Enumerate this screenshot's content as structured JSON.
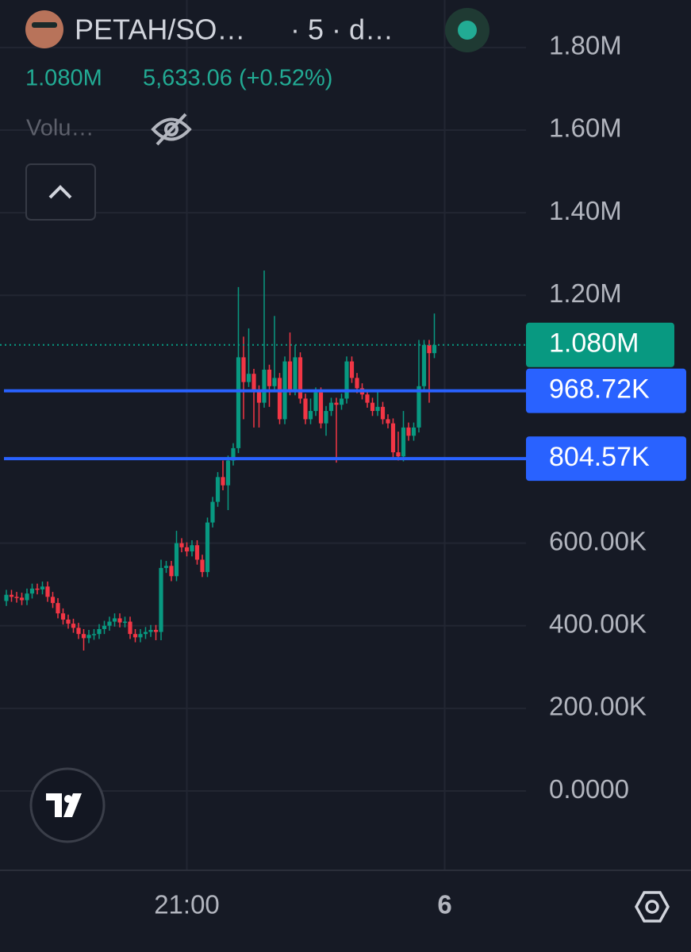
{
  "header": {
    "symbol": "PETAH/SO…",
    "interval": "· 5 · d…",
    "price": "1.080M",
    "change": "5,633.06 (+0.52%)",
    "indicator": "Volu…"
  },
  "chart_data": {
    "type": "candlestick",
    "categories": [
      null,
      null,
      null,
      null,
      null,
      null,
      null,
      null,
      null,
      null,
      null,
      null,
      null,
      null,
      null,
      null,
      null,
      null,
      null,
      null,
      null,
      null,
      null,
      null,
      null,
      null,
      null,
      null,
      null,
      null,
      null,
      null,
      null,
      null,
      null,
      "21:00",
      null,
      null,
      null,
      null,
      null,
      null,
      null,
      null,
      null,
      null,
      null,
      null,
      null,
      null,
      null,
      null,
      null,
      null,
      null,
      null,
      null,
      null,
      null,
      null,
      null,
      null,
      null,
      null,
      null,
      null,
      null,
      null,
      null,
      null,
      null,
      null,
      null,
      null,
      null,
      null,
      null,
      null,
      null,
      null,
      null,
      null,
      null,
      null,
      null,
      "6"
    ],
    "open": [
      460000,
      475000,
      470000,
      468000,
      462000,
      478000,
      490000,
      488000,
      495000,
      470000,
      455000,
      430000,
      415000,
      405000,
      395000,
      380000,
      370000,
      378000,
      380000,
      392000,
      400000,
      410000,
      418000,
      408000,
      410000,
      380000,
      372000,
      380000,
      385000,
      390000,
      385000,
      540000,
      545000,
      520000,
      600000,
      590000,
      580000,
      595000,
      560000,
      530000,
      650000,
      700000,
      760000,
      740000,
      800000,
      830000,
      1050000,
      990000,
      1010000,
      970000,
      940000,
      1020000,
      980000,
      1000000,
      900000,
      1040000,
      970000,
      1050000,
      950000,
      900000,
      920000,
      965000,
      890000,
      920000,
      940000,
      935000,
      950000,
      1040000,
      1000000,
      975000,
      960000,
      940000,
      920000,
      930000,
      900000,
      890000,
      820000,
      810000,
      880000,
      860000,
      880000,
      980000,
      1080000,
      1060000,
      null,
      null
    ],
    "high": [
      487000,
      487000,
      482000,
      480000,
      490000,
      502000,
      502000,
      507000,
      507000,
      482000,
      467000,
      442000,
      427000,
      417000,
      407000,
      392000,
      390000,
      392000,
      404000,
      412000,
      422000,
      430000,
      430000,
      422000,
      422000,
      392000,
      392000,
      397000,
      402000,
      402000,
      560000,
      557000,
      557000,
      630000,
      612000,
      602000,
      607000,
      607000,
      572000,
      662000,
      712000,
      772000,
      800000,
      812000,
      842000,
      1220000,
      1100000,
      1120000,
      1022000,
      982000,
      1260000,
      1032000,
      1150000,
      1012000,
      1052000,
      1110000,
      1080000,
      1062000,
      962000,
      950000,
      977000,
      977000,
      932000,
      952000,
      952000,
      962000,
      1052000,
      1052000,
      1012000,
      987000,
      972000,
      952000,
      970000,
      942000,
      912000,
      902000,
      870000,
      920000,
      892000,
      892000,
      1092000,
      1092000,
      1092000,
      1156000,
      null,
      null
    ],
    "low": [
      448000,
      458000,
      456000,
      450000,
      450000,
      466000,
      476000,
      476000,
      458000,
      443000,
      418000,
      403000,
      393000,
      383000,
      368000,
      340000,
      358000,
      366000,
      368000,
      380000,
      388000,
      398000,
      396000,
      396000,
      368000,
      360000,
      360000,
      368000,
      373000,
      365000,
      365000,
      528000,
      508000,
      508000,
      578000,
      568000,
      568000,
      548000,
      518000,
      518000,
      638000,
      688000,
      728000,
      680000,
      788000,
      818000,
      900000,
      978000,
      880000,
      880000,
      928000,
      930000,
      968000,
      888000,
      888000,
      958000,
      958000,
      938000,
      888000,
      888000,
      908000,
      878000,
      860000,
      908000,
      795000,
      923000,
      938000,
      988000,
      963000,
      948000,
      928000,
      908000,
      908000,
      888000,
      878000,
      808000,
      800000,
      798000,
      848000,
      848000,
      868000,
      968000,
      940000,
      1048000,
      null,
      null
    ],
    "close": [
      475000,
      470000,
      468000,
      462000,
      478000,
      490000,
      488000,
      495000,
      470000,
      455000,
      430000,
      415000,
      405000,
      395000,
      380000,
      370000,
      378000,
      380000,
      392000,
      400000,
      410000,
      418000,
      408000,
      410000,
      380000,
      372000,
      380000,
      385000,
      390000,
      385000,
      540000,
      545000,
      520000,
      600000,
      590000,
      580000,
      595000,
      560000,
      530000,
      650000,
      700000,
      760000,
      740000,
      800000,
      830000,
      1050000,
      990000,
      1010000,
      970000,
      940000,
      1020000,
      980000,
      1000000,
      900000,
      1040000,
      970000,
      1050000,
      950000,
      900000,
      920000,
      965000,
      890000,
      920000,
      940000,
      935000,
      950000,
      1040000,
      1000000,
      975000,
      960000,
      940000,
      920000,
      930000,
      900000,
      890000,
      820000,
      810000,
      880000,
      860000,
      880000,
      980000,
      1080000,
      1060000,
      1080000,
      null,
      null
    ],
    "up_color": "#089981",
    "down_color": "#f23645",
    "ylim": [
      -192000,
      1915000
    ],
    "yticks": [
      {
        "value": 0,
        "label": "0.0000"
      },
      {
        "value": 200000,
        "label": "200.00K"
      },
      {
        "value": 400000,
        "label": "400.00K"
      },
      {
        "value": 600000,
        "label": "600.00K"
      },
      {
        "value": 1200000,
        "label": "1.20M"
      },
      {
        "value": 1400000,
        "label": "1.40M"
      },
      {
        "value": 1600000,
        "label": "1.60M"
      },
      {
        "value": 1800000,
        "label": "1.80M"
      }
    ],
    "grid": true,
    "hlines": [
      {
        "value": 968720,
        "label": "968.72K",
        "color": "#2962ff"
      },
      {
        "value": 804570,
        "label": "804.57K",
        "color": "#2962ff"
      }
    ],
    "last_price": {
      "value": 1080000,
      "label": "1.080M",
      "color": "#089981"
    }
  }
}
